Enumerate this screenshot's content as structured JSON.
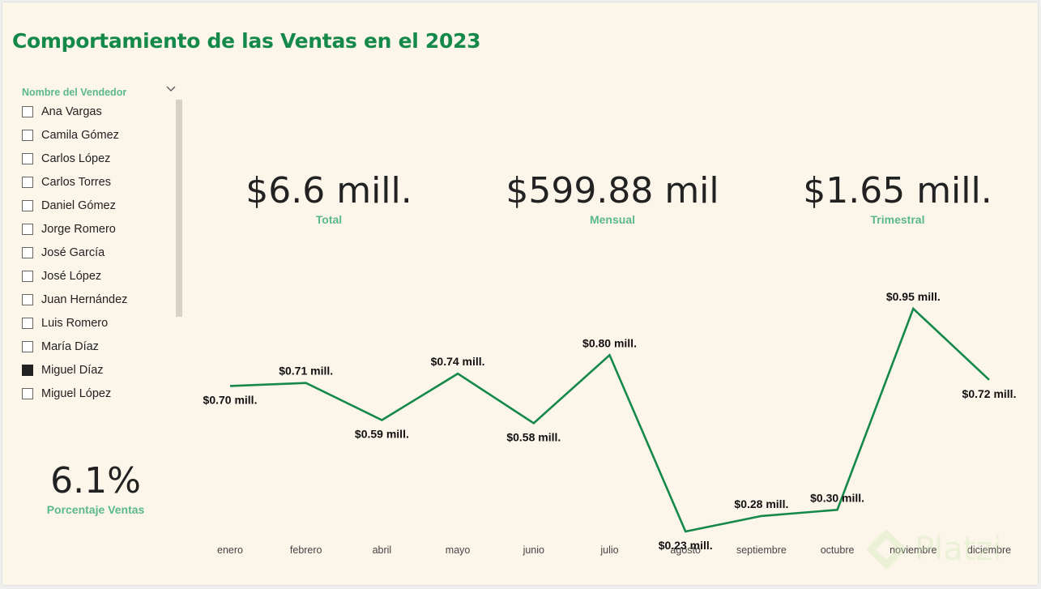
{
  "title": "Comportamiento de las Ventas en el 2023",
  "slicer": {
    "title": "Nombre del Vendedor",
    "items": [
      {
        "label": "Ana Vargas",
        "checked": false
      },
      {
        "label": "Camila Gómez",
        "checked": false
      },
      {
        "label": "Carlos López",
        "checked": false
      },
      {
        "label": "Carlos Torres",
        "checked": false
      },
      {
        "label": "Daniel Gómez",
        "checked": false
      },
      {
        "label": "Jorge Romero",
        "checked": false
      },
      {
        "label": "José García",
        "checked": false
      },
      {
        "label": "José López",
        "checked": false
      },
      {
        "label": "Juan Hernández",
        "checked": false
      },
      {
        "label": "Luis Romero",
        "checked": false
      },
      {
        "label": "María Díaz",
        "checked": false
      },
      {
        "label": "Miguel Díaz",
        "checked": true
      },
      {
        "label": "Miguel López",
        "checked": false
      }
    ]
  },
  "kpis": {
    "total": {
      "value": "$6.6 mill.",
      "label": "Total"
    },
    "mensual": {
      "value": "$599.88 mil",
      "label": "Mensual"
    },
    "trimestral": {
      "value": "$1.65 mill.",
      "label": "Trimestral"
    },
    "porcentaje": {
      "value": "6.1%",
      "label": "Porcentaje Ventas"
    }
  },
  "watermark": "Platzi",
  "colors": {
    "accent": "#14894a",
    "label": "#5bb88c",
    "background": "#fcf6ea"
  },
  "chart_data": {
    "type": "line",
    "categories": [
      "enero",
      "febrero",
      "abril",
      "mayo",
      "junio",
      "julio",
      "agosto",
      "septiembre",
      "octubre",
      "noviembre",
      "diciembre"
    ],
    "values": [
      0.7,
      0.71,
      0.59,
      0.74,
      0.58,
      0.8,
      0.23,
      0.28,
      0.3,
      0.95,
      0.72
    ],
    "labels": [
      "$0.70 mill.",
      "$0.71 mill.",
      "$0.59 mill.",
      "$0.74 mill.",
      "$0.58 mill.",
      "$0.80 mill.",
      "$0.23 mill.",
      "$0.28 mill.",
      "$0.30 mill.",
      "$0.95 mill.",
      "$0.72 mill."
    ],
    "grid": false,
    "color": "#14894a"
  }
}
